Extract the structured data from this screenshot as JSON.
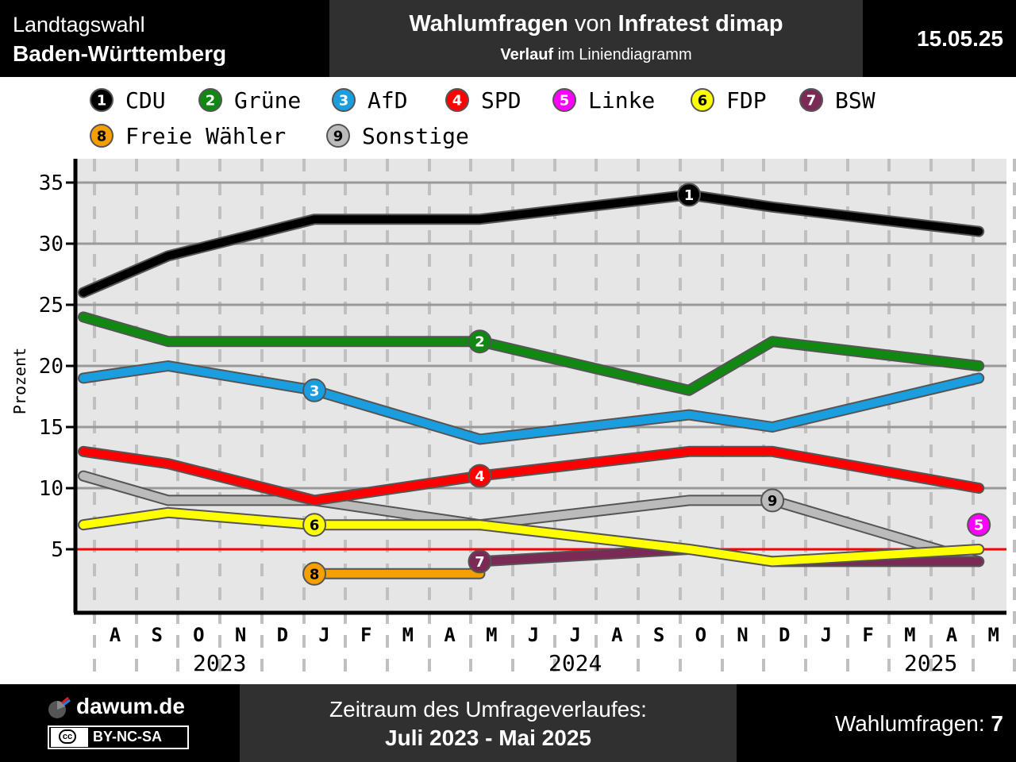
{
  "header": {
    "left_line1": "Landtagswahl",
    "left_line2": "Baden-Württemberg",
    "title_bold1": "Wahlumfragen",
    "title_mid": " von ",
    "title_bold2": "Infratest dimap",
    "subtitle_bold": "Verlauf",
    "subtitle_rest": " im Liniendiagramm",
    "date": "15.05.25"
  },
  "footer": {
    "site": "dawum.de",
    "license": "BY-NC-SA",
    "license_badge": "cc",
    "period_label": "Zeitraum des Umfrageverlaufes:",
    "period_value": "Juli 2023 - Mai 2025",
    "count_label": "Wahlumfragen: ",
    "count_value": "7"
  },
  "chart_data": {
    "type": "line",
    "ylabel": "Prozent",
    "ylim": [
      0,
      37
    ],
    "yticks": [
      5,
      10,
      15,
      20,
      25,
      30,
      35
    ],
    "threshold": 5,
    "threshold_color": "#ff0000",
    "months": [
      "A",
      "S",
      "O",
      "N",
      "D",
      "J",
      "F",
      "M",
      "A",
      "M",
      "J",
      "J",
      "A",
      "S",
      "O",
      "N",
      "D",
      "J",
      "F",
      "M",
      "A",
      "M"
    ],
    "years": [
      {
        "label": "2023",
        "month_index": 2.5
      },
      {
        "label": "2024",
        "month_index": 11
      },
      {
        "label": "2025",
        "month_index": 19.5
      }
    ],
    "x_range": [
      "2023-07-20",
      "2025-05-20"
    ],
    "series": [
      {
        "num": "1",
        "name": "CDU",
        "color": "#000000",
        "num_color": "#ffffff",
        "x": [
          "2023-07-20",
          "2023-09-20",
          "2024-01-05",
          "2024-05-05",
          "2024-10-05",
          "2024-12-05",
          "2025-05-05"
        ],
        "values": [
          26,
          29,
          32,
          32,
          34,
          33,
          31
        ],
        "marker_index": 4
      },
      {
        "num": "2",
        "name": "Grüne",
        "color": "#118811",
        "num_color": "#ffffff",
        "x": [
          "2023-07-20",
          "2023-09-20",
          "2024-01-05",
          "2024-05-05",
          "2024-10-05",
          "2024-12-05",
          "2025-05-05"
        ],
        "values": [
          24,
          22,
          22,
          22,
          18,
          22,
          20
        ],
        "marker_index": 3
      },
      {
        "num": "3",
        "name": "AfD",
        "color": "#1a9ee0",
        "num_color": "#ffffff",
        "x": [
          "2023-07-20",
          "2023-09-20",
          "2024-01-05",
          "2024-05-05",
          "2024-10-05",
          "2024-12-05",
          "2025-05-05"
        ],
        "values": [
          19,
          20,
          18,
          14,
          16,
          15,
          19
        ],
        "marker_index": 2
      },
      {
        "num": "4",
        "name": "SPD",
        "color": "#ff0000",
        "num_color": "#ffffff",
        "x": [
          "2023-07-20",
          "2023-09-20",
          "2024-01-05",
          "2024-05-05",
          "2024-10-05",
          "2024-12-05",
          "2025-05-05"
        ],
        "values": [
          13,
          12,
          9,
          11,
          13,
          13,
          10
        ],
        "marker_index": 3
      },
      {
        "num": "5",
        "name": "Linke",
        "color": "#ff00ff",
        "num_color": "#ffffff",
        "x": [
          "2025-05-05"
        ],
        "values": [
          7
        ],
        "marker_index": 0
      },
      {
        "num": "6",
        "name": "FDP",
        "color": "#ffff00",
        "num_color": "#000000",
        "x": [
          "2023-07-20",
          "2023-09-20",
          "2024-01-05",
          "2024-05-05",
          "2024-10-05",
          "2024-12-05",
          "2025-05-05"
        ],
        "values": [
          7,
          8,
          7,
          7,
          5,
          4,
          5
        ],
        "marker_index": 2
      },
      {
        "num": "7",
        "name": "BSW",
        "color": "#7a2a55",
        "num_color": "#ffffff",
        "x": [
          "2024-05-05",
          "2024-10-05",
          "2024-12-05",
          "2025-05-05"
        ],
        "values": [
          4,
          5,
          4,
          4
        ],
        "marker_index": 0
      },
      {
        "num": "8",
        "name": "Freie Wähler",
        "color": "#f5a000",
        "num_color": "#000000",
        "x": [
          "2024-01-05",
          "2024-05-05"
        ],
        "values": [
          3,
          3
        ],
        "marker_index": 0
      },
      {
        "num": "9",
        "name": "Sonstige",
        "color": "#bbbbbb",
        "num_color": "#000000",
        "x": [
          "2023-07-20",
          "2023-09-20",
          "2024-01-05",
          "2024-05-05",
          "2024-10-05",
          "2024-12-05",
          "2025-05-05"
        ],
        "values": [
          11,
          9,
          9,
          7,
          9,
          9,
          4
        ],
        "marker_index": 5
      }
    ]
  }
}
